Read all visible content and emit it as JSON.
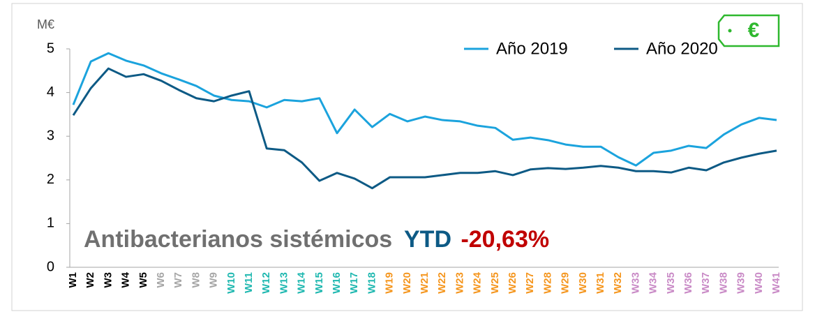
{
  "chart_data": {
    "type": "line",
    "y_unit": "M€",
    "categories": [
      "W1",
      "W2",
      "W3",
      "W4",
      "W5",
      "W6",
      "W7",
      "W8",
      "W9",
      "W10",
      "W11",
      "W12",
      "W13",
      "W14",
      "W15",
      "W16",
      "W17",
      "W18",
      "W19",
      "W20",
      "W21",
      "W22",
      "W23",
      "W24",
      "W25",
      "W26",
      "W27",
      "W28",
      "W29",
      "W30",
      "W31",
      "W32",
      "W33",
      "W34",
      "W35",
      "W36",
      "W37",
      "W38",
      "W39",
      "W40",
      "W41"
    ],
    "category_colors": [
      "#000000",
      "#000000",
      "#000000",
      "#000000",
      "#000000",
      "#a6a6a6",
      "#a6a6a6",
      "#a6a6a6",
      "#a6a6a6",
      "#1fb8b0",
      "#1fb8b0",
      "#1fb8b0",
      "#1fb8b0",
      "#1fb8b0",
      "#1fb8b0",
      "#1fb8b0",
      "#1fb8b0",
      "#1fb8b0",
      "#f5961e",
      "#f5961e",
      "#f5961e",
      "#f5961e",
      "#f5961e",
      "#f5961e",
      "#f5961e",
      "#f5961e",
      "#f5961e",
      "#f5961e",
      "#f5961e",
      "#f5961e",
      "#f5961e",
      "#f5961e",
      "#c98ac6",
      "#c98ac6",
      "#c98ac6",
      "#c98ac6",
      "#c98ac6",
      "#c98ac6",
      "#c98ac6",
      "#c98ac6",
      "#c98ac6"
    ],
    "series": [
      {
        "name": "Año 2019",
        "color": "#1ba3dd",
        "values": [
          3.72,
          4.71,
          4.9,
          4.73,
          4.62,
          4.44,
          4.3,
          4.15,
          3.93,
          3.83,
          3.8,
          3.66,
          3.83,
          3.8,
          3.87,
          3.07,
          3.61,
          3.21,
          3.51,
          3.34,
          3.45,
          3.37,
          3.34,
          3.24,
          3.19,
          2.92,
          2.97,
          2.91,
          2.81,
          2.76,
          2.76,
          2.52,
          2.33,
          2.62,
          2.67,
          2.78,
          2.73,
          3.04,
          3.27,
          3.42,
          3.37
        ]
      },
      {
        "name": "Año 2020",
        "color": "#0d5a85",
        "values": [
          3.48,
          4.1,
          4.55,
          4.36,
          4.42,
          4.27,
          4.06,
          3.87,
          3.8,
          3.93,
          4.03,
          2.72,
          2.68,
          2.4,
          1.98,
          2.16,
          2.03,
          1.81,
          2.06,
          2.06,
          2.06,
          2.11,
          2.16,
          2.16,
          2.2,
          2.11,
          2.24,
          2.27,
          2.25,
          2.28,
          2.32,
          2.28,
          2.2,
          2.2,
          2.17,
          2.28,
          2.22,
          2.4,
          2.51,
          2.6,
          2.67
        ]
      }
    ],
    "ylim": [
      0,
      5
    ],
    "yticks": [
      0,
      1,
      2,
      3,
      4,
      5
    ],
    "grid": false,
    "legend": "top-right",
    "annotation": {
      "label": "Antibacterianos sistémicos",
      "ytd": "YTD",
      "change": "-20,63%"
    },
    "badge": "€"
  }
}
